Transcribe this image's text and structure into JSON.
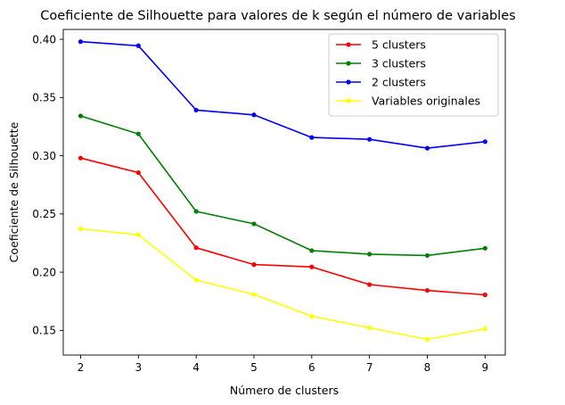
{
  "chart_data": {
    "type": "line",
    "title": "Coeficiente de Silhouette para valores de k según el número de variables",
    "xlabel": "Número de clusters",
    "ylabel": "Coeficiente de Silhouette",
    "x": [
      2,
      3,
      4,
      5,
      6,
      7,
      8,
      9
    ],
    "xlim": [
      1.7,
      9.35
    ],
    "ylim": [
      0.1288,
      0.4085
    ],
    "xticks": [
      2,
      3,
      4,
      5,
      6,
      7,
      8,
      9
    ],
    "yticks": [
      0.15,
      0.2,
      0.25,
      0.3,
      0.35,
      0.4
    ],
    "ytick_labels": [
      "0.15",
      "0.20",
      "0.25",
      "0.30",
      "0.35",
      "0.40"
    ],
    "grid": false,
    "legend_position": "top-right",
    "series": [
      {
        "name": "5 clusters",
        "color": "#ff0000",
        "values": [
          0.298,
          0.2855,
          0.221,
          0.2065,
          0.2045,
          0.1893,
          0.1843,
          0.1805
        ]
      },
      {
        "name": "3 clusters",
        "color": "#008000",
        "values": [
          0.3342,
          0.3188,
          0.2522,
          0.2415,
          0.2185,
          0.2155,
          0.2143,
          0.2205
        ]
      },
      {
        "name": "2 clusters",
        "color": "#0000ff",
        "values": [
          0.398,
          0.3945,
          0.3392,
          0.3351,
          0.3157,
          0.3141,
          0.3065,
          0.3121
        ]
      },
      {
        "name": "Variables originales",
        "color": "#ffff00",
        "values": [
          0.2372,
          0.2321,
          0.1932,
          0.1809,
          0.1621,
          0.1522,
          0.1422,
          0.1513
        ]
      }
    ]
  }
}
